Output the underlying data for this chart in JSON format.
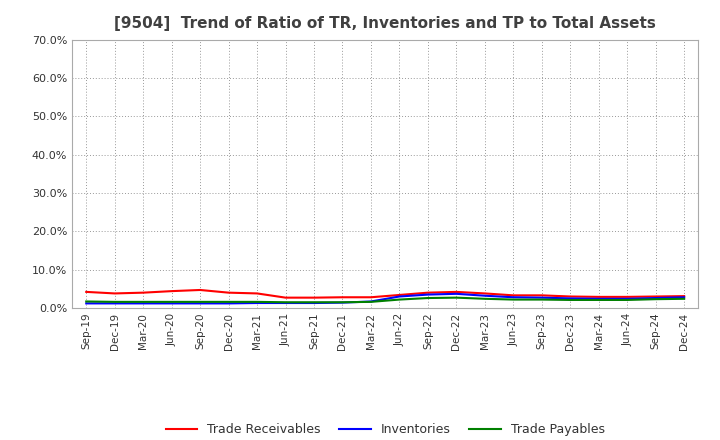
{
  "title": "[9504]  Trend of Ratio of TR, Inventories and TP to Total Assets",
  "labels": [
    "Sep-19",
    "Dec-19",
    "Mar-20",
    "Jun-20",
    "Sep-20",
    "Dec-20",
    "Mar-21",
    "Jun-21",
    "Sep-21",
    "Dec-21",
    "Mar-22",
    "Jun-22",
    "Sep-22",
    "Dec-22",
    "Mar-23",
    "Jun-23",
    "Sep-23",
    "Dec-23",
    "Mar-24",
    "Jun-24",
    "Sep-24",
    "Dec-24"
  ],
  "trade_receivables": [
    0.042,
    0.038,
    0.04,
    0.044,
    0.047,
    0.04,
    0.038,
    0.027,
    0.027,
    0.028,
    0.028,
    0.034,
    0.04,
    0.042,
    0.038,
    0.033,
    0.033,
    0.03,
    0.029,
    0.029,
    0.03,
    0.031
  ],
  "inventories": [
    0.012,
    0.012,
    0.012,
    0.012,
    0.012,
    0.012,
    0.013,
    0.013,
    0.013,
    0.014,
    0.017,
    0.03,
    0.035,
    0.037,
    0.032,
    0.028,
    0.027,
    0.025,
    0.024,
    0.024,
    0.026,
    0.028
  ],
  "trade_payables": [
    0.017,
    0.016,
    0.016,
    0.016,
    0.016,
    0.016,
    0.016,
    0.015,
    0.015,
    0.015,
    0.016,
    0.022,
    0.026,
    0.027,
    0.024,
    0.022,
    0.022,
    0.021,
    0.021,
    0.021,
    0.023,
    0.024
  ],
  "ylim": [
    0.0,
    0.7
  ],
  "yticks": [
    0.0,
    0.1,
    0.2,
    0.3,
    0.4,
    0.5,
    0.6,
    0.7
  ],
  "tr_color": "#FF0000",
  "inv_color": "#0000FF",
  "tp_color": "#008000",
  "background_color": "#FFFFFF",
  "grid_color": "#999999",
  "title_color": "#404040",
  "legend_labels": [
    "Trade Receivables",
    "Inventories",
    "Trade Payables"
  ]
}
